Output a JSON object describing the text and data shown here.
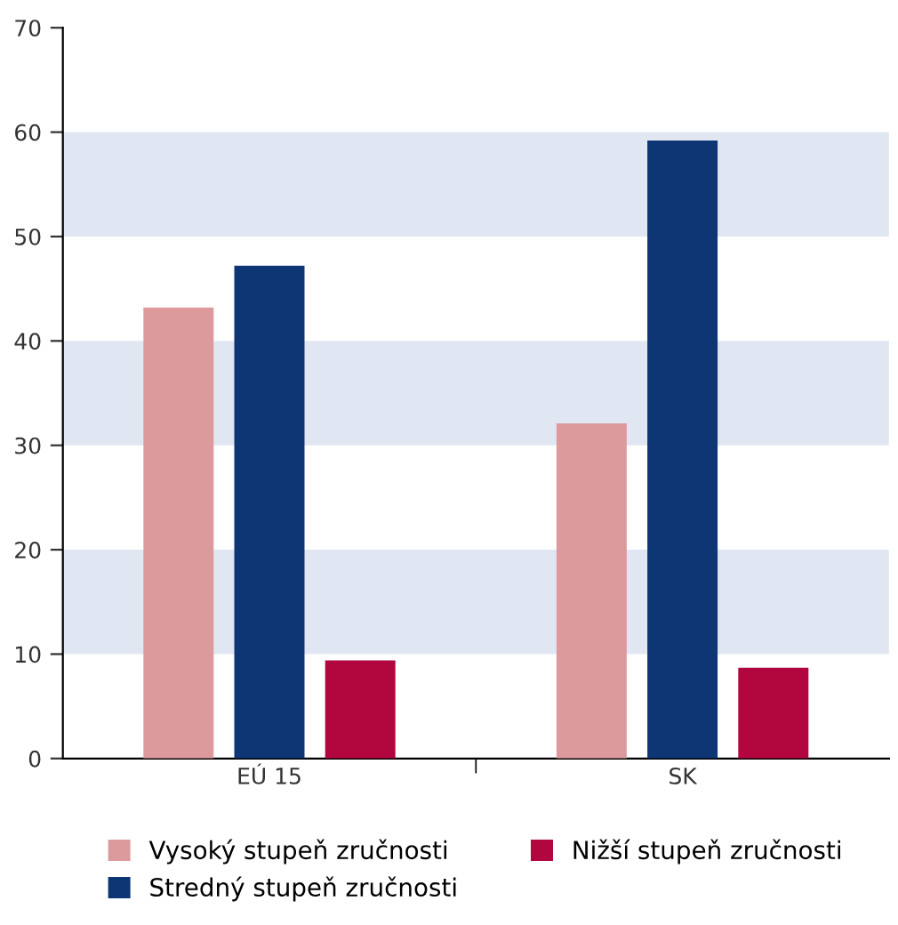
{
  "chart_data": {
    "type": "bar",
    "categories": [
      "EÚ 15",
      "SK"
    ],
    "series": [
      {
        "name": "Vysoký stupeň zručnosti",
        "color": "#dc9a9c",
        "values": [
          43.2,
          32.1
        ]
      },
      {
        "name": "Stredný stupeň zručnosti",
        "color": "#0e3574",
        "values": [
          47.2,
          59.2
        ]
      },
      {
        "name": "Nižší stupeň zručnosti",
        "color": "#b2063f",
        "values": [
          9.4,
          8.7
        ]
      }
    ],
    "ylim": [
      0,
      70
    ],
    "yticks": [
      0,
      10,
      20,
      30,
      40,
      50,
      60,
      70
    ],
    "bands": [
      {
        "axis": "y",
        "from": 10,
        "to": 20,
        "color": "#e1e7f2"
      },
      {
        "axis": "y",
        "from": 30,
        "to": 40,
        "color": "#e1e7f2"
      },
      {
        "axis": "y",
        "from": 50,
        "to": 60,
        "color": "#e1e7f2"
      }
    ],
    "grid": false,
    "legend": "bottom"
  }
}
